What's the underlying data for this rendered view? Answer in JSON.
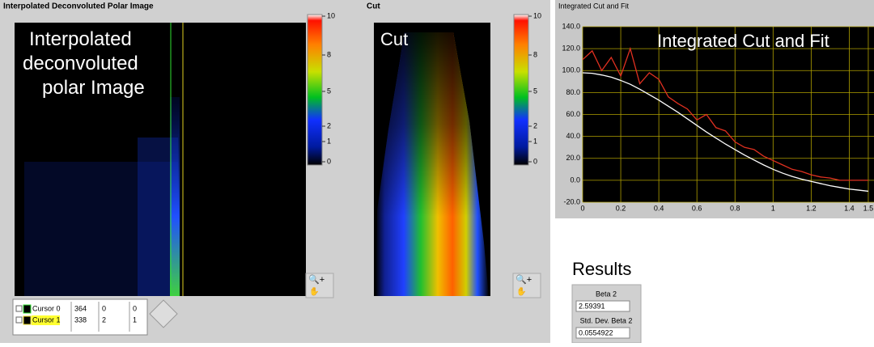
{
  "left_panel": {
    "title": "Interpolated Deconvoluted Polar Image",
    "overlay": "Interpolated deconvoluted polar Image",
    "colorbar_ticks": [
      10,
      8,
      5,
      2,
      1,
      0
    ]
  },
  "cursor_table": {
    "rows": [
      [
        "Cursor 0",
        364,
        0,
        0
      ],
      [
        "Cursor 1",
        338,
        2,
        1
      ]
    ]
  },
  "cut_panel": {
    "title": "Cut",
    "overlay": "Cut",
    "colorbar_ticks": [
      10,
      8,
      5,
      2,
      1,
      0
    ]
  },
  "chart_data": {
    "type": "line",
    "title": "Integrated Cut and Fit",
    "overlay": "Integrated Cut and Fit",
    "x": [
      0,
      0.05,
      0.1,
      0.15,
      0.2,
      0.25,
      0.3,
      0.35,
      0.4,
      0.45,
      0.5,
      0.55,
      0.6,
      0.65,
      0.7,
      0.75,
      0.8,
      0.85,
      0.9,
      0.95,
      1.0,
      1.05,
      1.1,
      1.15,
      1.2,
      1.25,
      1.3,
      1.35,
      1.4,
      1.45,
      1.5
    ],
    "series": [
      {
        "color": "#e03020",
        "values": [
          110,
          118,
          100,
          112,
          95,
          120,
          88,
          98,
          92,
          76,
          70,
          65,
          55,
          60,
          48,
          45,
          35,
          30,
          28,
          22,
          18,
          14,
          10,
          8,
          5,
          3,
          2,
          0,
          0,
          0,
          0
        ]
      },
      {
        "color": "#ffffff",
        "values": [
          98,
          97.5,
          96,
          94,
          91,
          87.5,
          83,
          78,
          73,
          67.5,
          62,
          56,
          50,
          44,
          38.5,
          33,
          28,
          23,
          18.5,
          14,
          10,
          6.5,
          3.5,
          1,
          -1,
          -3,
          -5,
          -6.5,
          -8,
          -9,
          -10
        ]
      }
    ],
    "xlim": [
      0,
      1.53
    ],
    "ylim": [
      -20,
      140
    ],
    "xticks": [
      0,
      0.2,
      0.4,
      0.6,
      0.8,
      1,
      1.2,
      1.4,
      1.5
    ],
    "yticks": [
      {
        "value": 140,
        "label": "140.0"
      },
      {
        "value": 120,
        "label": "120.0"
      },
      {
        "value": 100,
        "label": "100.0"
      },
      {
        "value": 80,
        "label": "80.0"
      },
      {
        "value": 60,
        "label": "60.0"
      },
      {
        "value": 40,
        "label": "40.0"
      },
      {
        "value": 20,
        "label": "20.0"
      },
      {
        "value": 0,
        "label": "0.0"
      },
      {
        "value": -20,
        "label": "-20.0"
      }
    ],
    "grid": true
  },
  "results": {
    "title": "Results",
    "fields": [
      {
        "label": "Beta 2",
        "value": "2.59391"
      },
      {
        "label": "Std. Dev. Beta 2",
        "value": "0.0554922"
      }
    ]
  }
}
